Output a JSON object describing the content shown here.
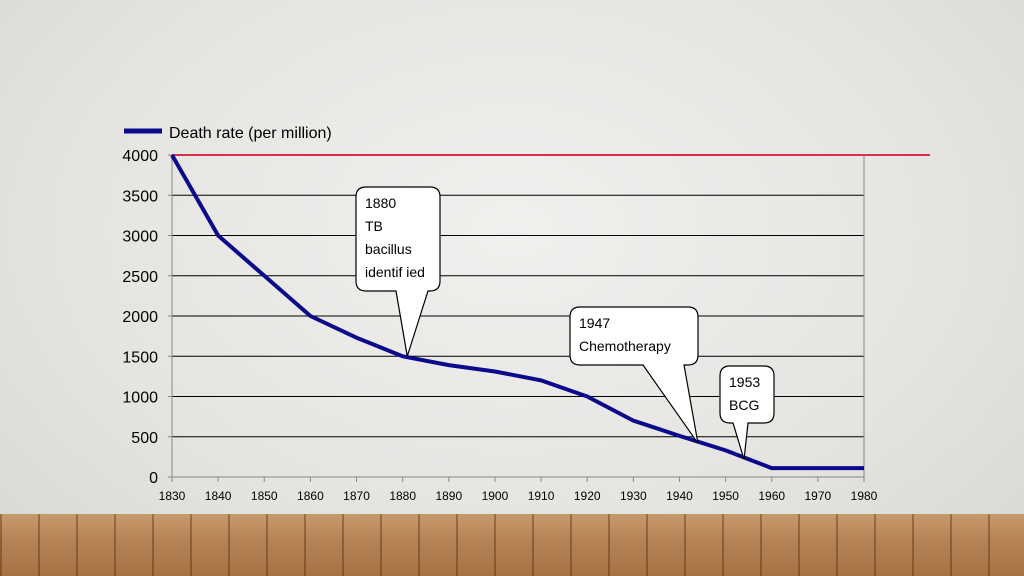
{
  "chart_data": {
    "type": "line",
    "title": "",
    "xlabel": "",
    "ylabel": "",
    "x": [
      1830,
      1840,
      1850,
      1860,
      1870,
      1880,
      1890,
      1900,
      1910,
      1920,
      1930,
      1940,
      1950,
      1960,
      1970,
      1980
    ],
    "series": [
      {
        "name": "Death rate (per million)",
        "color": "#0a0a8c",
        "points": [
          [
            1830,
            4000
          ],
          [
            1840,
            3000
          ],
          [
            1850,
            2500
          ],
          [
            1860,
            2000
          ],
          [
            1870,
            1730
          ],
          [
            1880,
            1500
          ],
          [
            1890,
            1390
          ],
          [
            1900,
            1310
          ],
          [
            1910,
            1200
          ],
          [
            1920,
            1000
          ],
          [
            1930,
            700
          ],
          [
            1940,
            510
          ],
          [
            1950,
            330
          ],
          [
            1960,
            110
          ],
          [
            1970,
            110
          ],
          [
            1980,
            110
          ]
        ]
      }
    ],
    "xlim": [
      1830,
      1980
    ],
    "ylim": [
      0,
      4000
    ],
    "yticks": [
      0,
      500,
      1000,
      1500,
      2000,
      2500,
      3000,
      3500,
      4000
    ],
    "xticks": [
      1830,
      1840,
      1850,
      1860,
      1870,
      1880,
      1890,
      1900,
      1910,
      1920,
      1930,
      1940,
      1950,
      1960,
      1970,
      1980
    ],
    "grid": "horizontal",
    "legend": "top-left",
    "reference_line": {
      "y": 4000,
      "color": "#d2324a"
    },
    "annotations": [
      {
        "lines": [
          "1880",
          "TB",
          "bacillus",
          "identif ied"
        ],
        "point": [
          1881,
          1500
        ]
      },
      {
        "lines": [
          "1947",
          "Chemotherapy"
        ],
        "point": [
          1944,
          420
        ]
      },
      {
        "lines": [
          "1953",
          "BCG"
        ],
        "point": [
          1954,
          220
        ]
      }
    ]
  }
}
